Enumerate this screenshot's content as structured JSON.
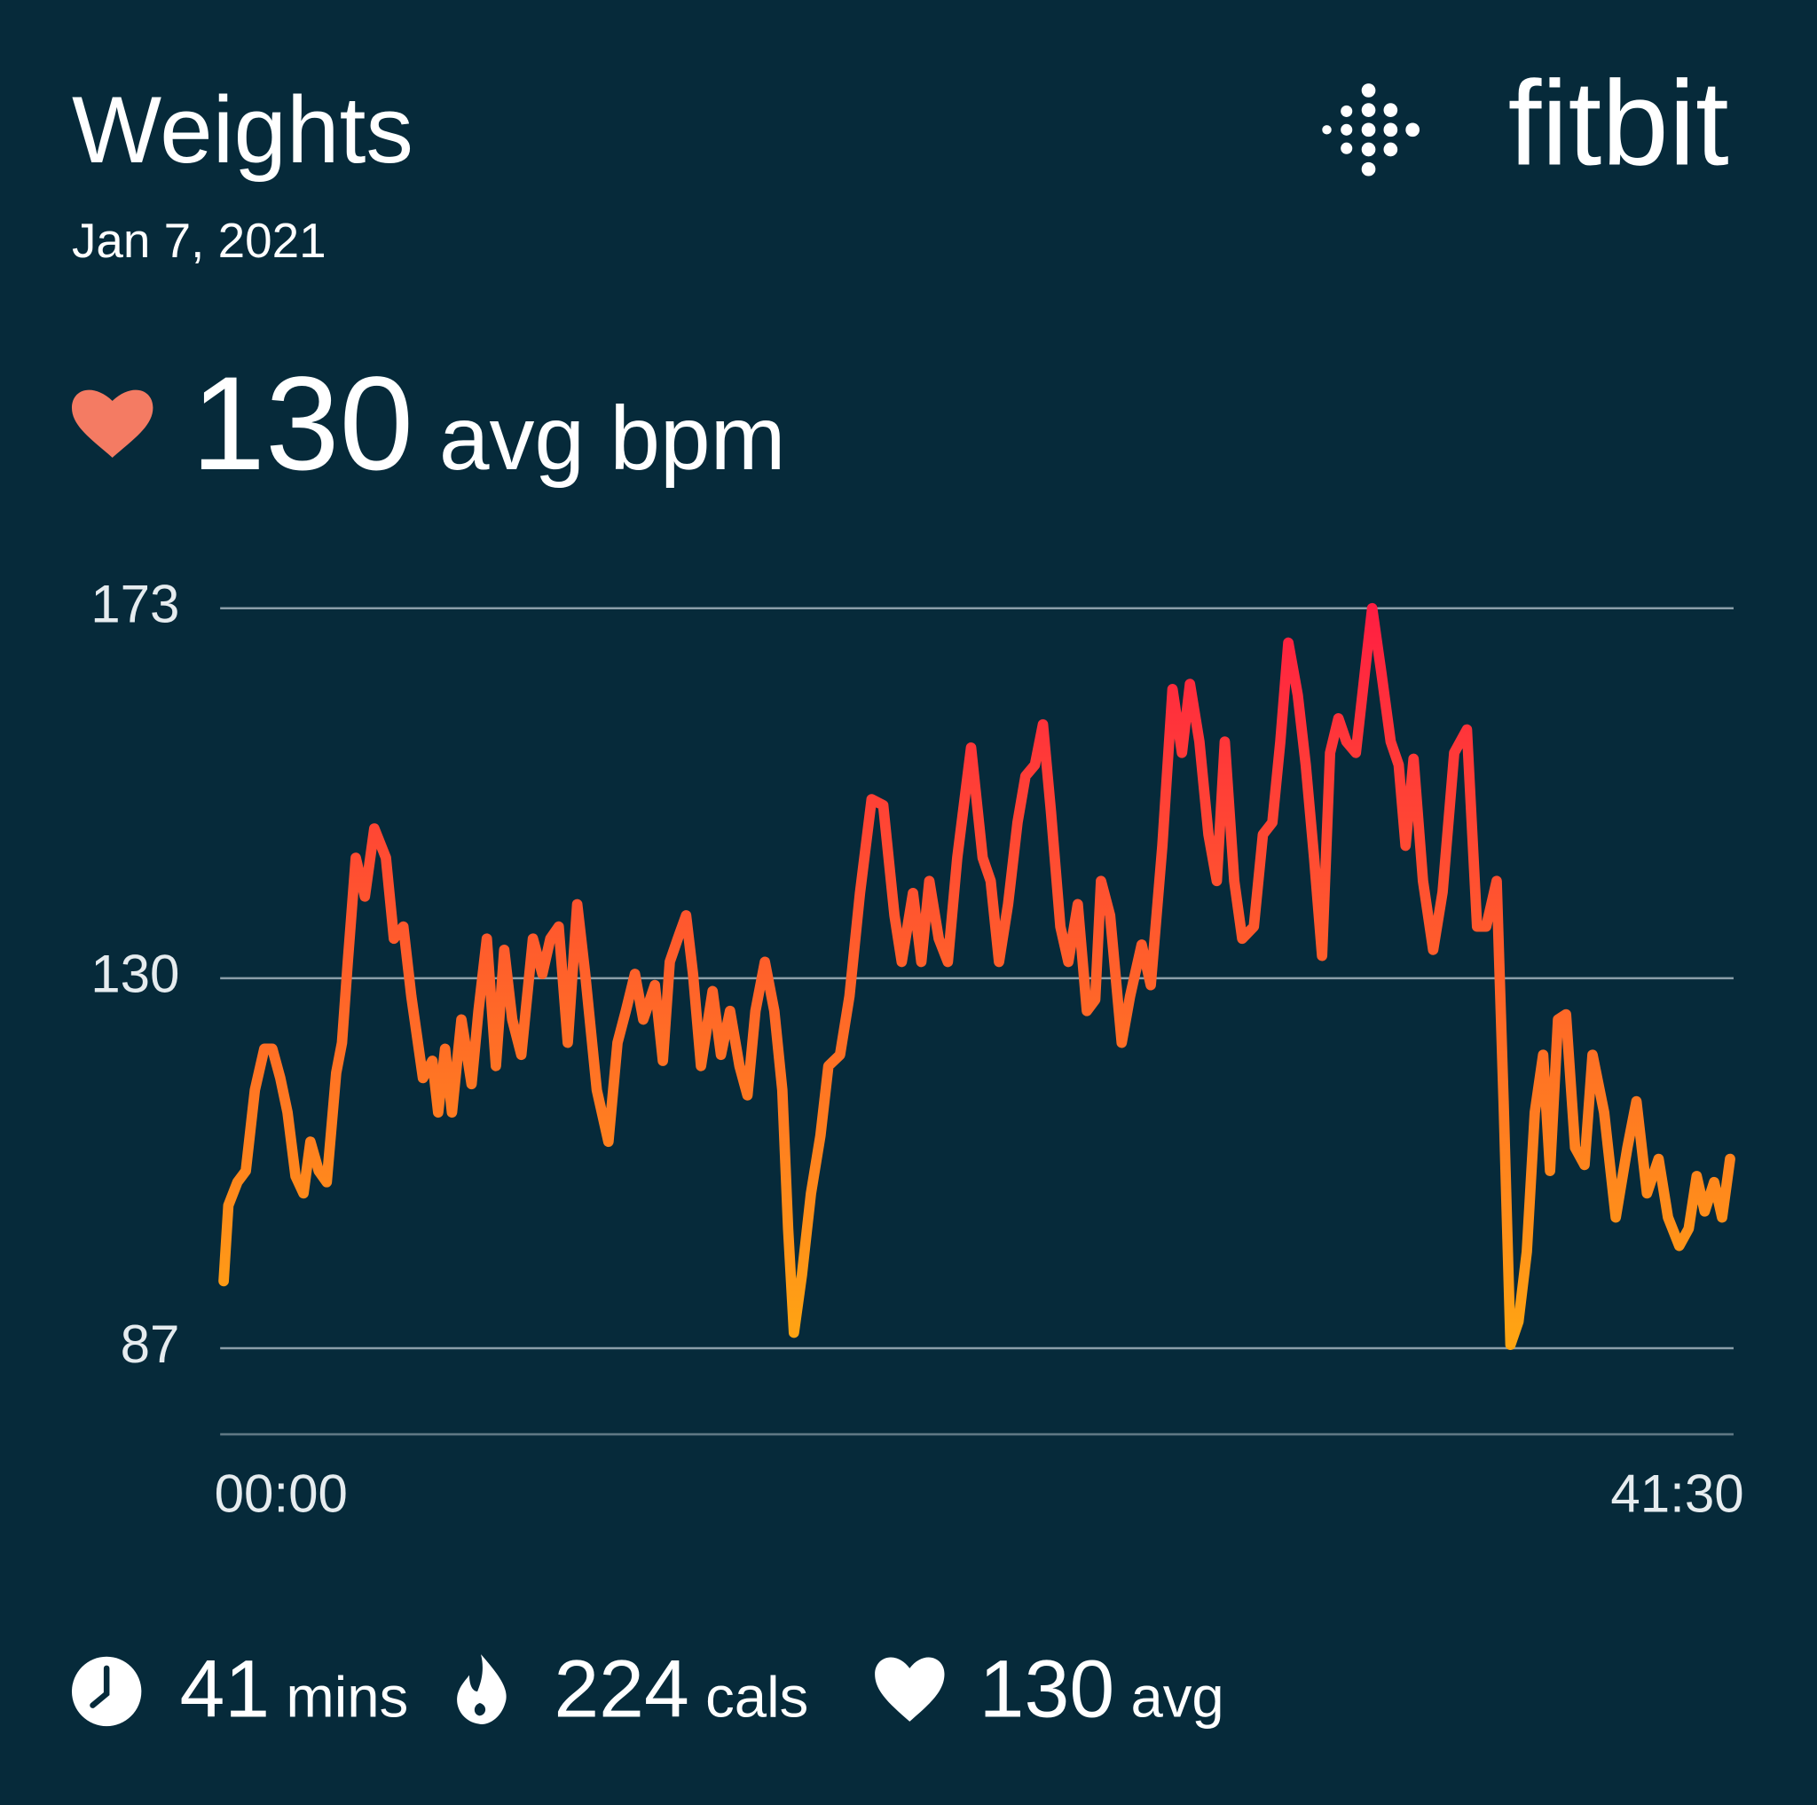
{
  "header": {
    "title": "Weights",
    "date": "Jan 7, 2021",
    "brand": "fitbit"
  },
  "summary": {
    "value": 130,
    "unit": "avg bpm"
  },
  "stats": [
    {
      "value": 41,
      "unit": "mins"
    },
    {
      "value": 224,
      "unit": "cals"
    },
    {
      "value": 130,
      "unit": "avg"
    }
  ],
  "chart_data": {
    "type": "line",
    "gradient": [
      "#ffa612",
      "#ff1e42"
    ],
    "grid": true,
    "ylim": [
      77,
      173
    ],
    "yticks": [
      87,
      130,
      173
    ],
    "xlim": [
      0,
      41.5
    ],
    "xticks": [
      {
        "value": 0,
        "label": "00:00"
      },
      {
        "value": 41.5,
        "label": "41:30"
      }
    ],
    "x": [
      0,
      0.13,
      0.38,
      0.61,
      0.86,
      1.12,
      1.34,
      1.56,
      1.76,
      1.98,
      2.2,
      2.39,
      2.62,
      2.84,
      3.1,
      3.26,
      3.42,
      3.64,
      3.89,
      4.15,
      4.47,
      4.69,
      4.95,
      5.17,
      5.49,
      5.75,
      5.91,
      6.1,
      6.29,
      6.55,
      6.83,
      7.02,
      7.25,
      7.5,
      7.73,
      7.95,
      8.2,
      8.52,
      8.78,
      9.0,
      9.23,
      9.48,
      9.74,
      9.96,
      10.28,
      10.6,
      10.85,
      11.08,
      11.33,
      11.56,
      11.88,
      12.1,
      12.29,
      12.51,
      12.74,
      12.93,
      13.15,
      13.47,
      13.7,
      13.95,
      14.21,
      14.43,
      14.65,
      14.91,
      15.17,
      15.39,
      15.55,
      15.71,
      15.93,
      16.18,
      16.44,
      16.66,
      16.98,
      17.24,
      17.53,
      17.85,
      18.17,
      18.48,
      18.68,
      18.99,
      19.22,
      19.44,
      19.7,
      19.95,
      20.21,
      20.59,
      20.91,
      21.13,
      21.36,
      21.61,
      21.87,
      22.09,
      22.35,
      22.57,
      22.79,
      23.05,
      23.27,
      23.53,
      23.78,
      24.01,
      24.17,
      24.42,
      24.74,
      24.97,
      25.29,
      25.54,
      25.86,
      26.14,
      26.4,
      26.62,
      26.88,
      27.13,
      27.36,
      27.58,
      27.84,
      28.06,
      28.38,
      28.63,
      28.89,
      29.11,
      29.33,
      29.59,
      29.81,
      30.04,
      30.26,
      30.48,
      30.71,
      30.93,
      31.19,
      31.44,
      31.64,
      31.89,
      32.15,
      32.37,
      32.56,
      32.78,
      33.04,
      33.32,
      33.58,
      33.9,
      34.25,
      34.53,
      34.78,
      35.07,
      35.26,
      35.45,
      35.67,
      35.9,
      36.12,
      36.35,
      36.54,
      36.76,
      36.98,
      37.23,
      37.49,
      37.71,
      38.03,
      38.35,
      38.67,
      38.92,
      39.21,
      39.53,
      39.79,
      40.1,
      40.36,
      40.58,
      40.8,
      41.06,
      41.28,
      41.5
    ],
    "values": [
      94.8,
      103.6,
      106.3,
      107.6,
      117,
      121.8,
      121.8,
      118.4,
      114.4,
      107,
      105,
      111,
      107.6,
      106.3,
      119,
      122.5,
      131.9,
      144,
      139.5,
      147.4,
      144,
      134.6,
      136,
      127.9,
      118.4,
      120.4,
      114.4,
      121.8,
      114.4,
      125.2,
      117.7,
      126.2,
      134.6,
      119.8,
      133.3,
      125.2,
      121.1,
      134.6,
      130.5,
      134.6,
      136,
      122.5,
      138.6,
      130.5,
      117,
      111,
      122.5,
      126.2,
      130.5,
      125.2,
      129.2,
      120.4,
      131.9,
      134.6,
      137.3,
      130.5,
      119.8,
      128.5,
      121.1,
      126.2,
      119.8,
      116.4,
      126.2,
      131.9,
      126.2,
      117,
      100.9,
      88.8,
      95.5,
      105,
      111.7,
      119.8,
      121.1,
      127.9,
      139.9,
      150.8,
      150.1,
      137.3,
      131.9,
      139.9,
      131.9,
      141.3,
      134.6,
      131.9,
      144,
      156.8,
      144,
      141.3,
      131.9,
      138.6,
      148.1,
      153.5,
      154.8,
      159.5,
      149.4,
      136,
      131.9,
      138.6,
      126.2,
      127.5,
      141.3,
      137.3,
      122.5,
      127.9,
      133.9,
      129.2,
      145.4,
      163.6,
      156.2,
      164.2,
      157.5,
      146.7,
      141.3,
      157.5,
      141.3,
      134.6,
      136,
      146.7,
      148.1,
      157.5,
      169,
      162.9,
      154.8,
      144,
      132.6,
      156.2,
      160.2,
      157.5,
      156.2,
      165.6,
      173,
      165.6,
      157.5,
      154.8,
      145.4,
      155.5,
      141.3,
      133.3,
      140,
      156.2,
      158.9,
      136,
      136,
      141.3,
      115.7,
      87.4,
      90.1,
      98.2,
      114.4,
      121.1,
      107.6,
      125.2,
      125.8,
      110.3,
      108.3,
      121.1,
      114.4,
      102.2,
      110.3,
      115.7,
      105,
      109,
      102.2,
      98.9,
      100.9,
      107,
      102.9,
      106.3,
      102.2,
      109
    ]
  }
}
